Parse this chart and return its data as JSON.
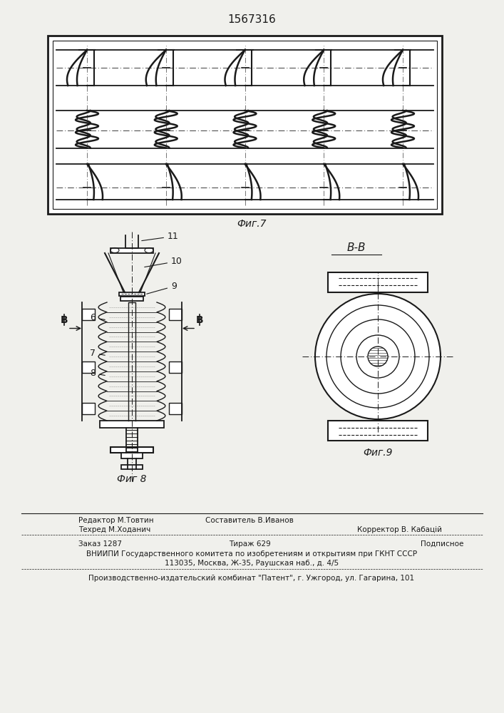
{
  "patent_number": "1567316",
  "fig7_caption": "Фиг.7",
  "fig8_caption": "Фиг 8",
  "fig9_caption": "Фиг.9",
  "section_label": "В-В",
  "editor_text": "Редактор М.Товтин",
  "composer_text": "Составитель В.Иванов",
  "tech_text": "Техред М.Ходанич",
  "corrector_text": "Корректор В. Кабацій",
  "order_text": "Заказ 1287",
  "tirazh_text": "Тираж 629",
  "podpisnoe_text": "Подписное",
  "vnipi_line1": "ВНИИПИ Государственного комитета по изобретениям и открытиям при ГКНТ СССР",
  "vnipi_line2": "113035, Москва, Ж-35, Раушская наб., д. 4/5",
  "production_line": "Производственно-издательский комбинат \"Патент\", г. Ужгород, ул. Гагарина, 101",
  "bg_color": "#f0f0ec",
  "line_color": "#1a1a1a"
}
